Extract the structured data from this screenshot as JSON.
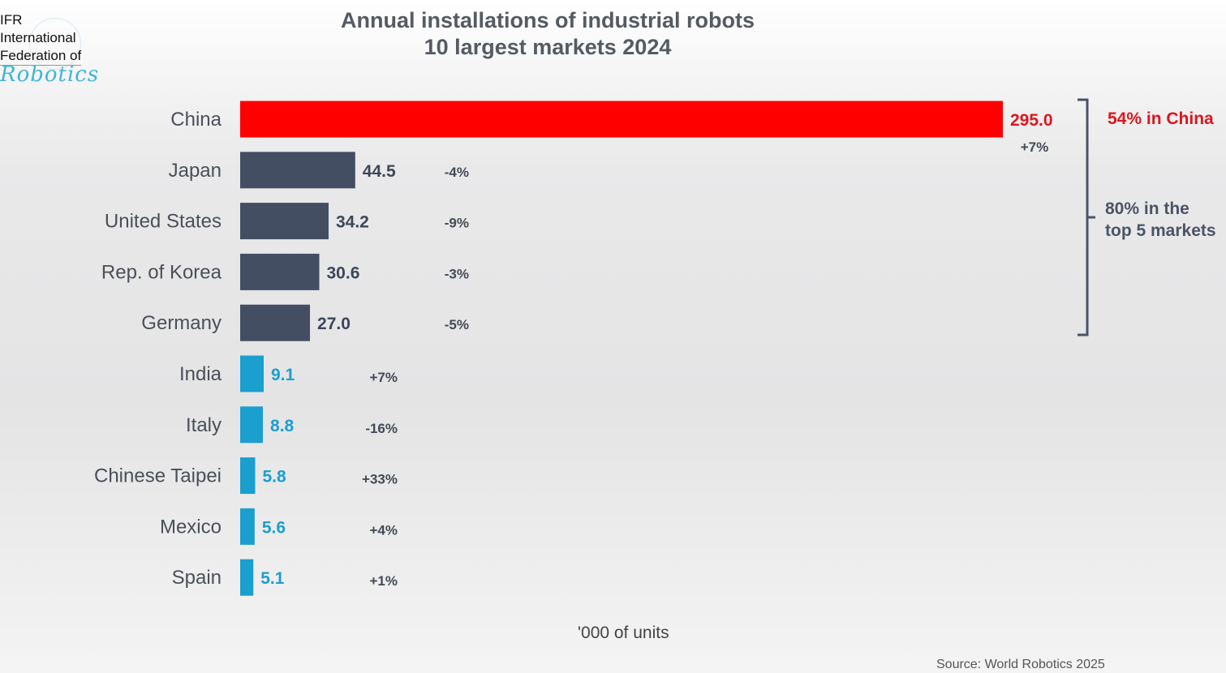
{
  "logo": {
    "line1": "IFR",
    "line2": "International",
    "line3": "Federation of",
    "line4": "Robotics"
  },
  "chart_data": {
    "type": "bar",
    "orientation": "horizontal",
    "title": "Annual installations of industrial robots",
    "subtitle": "10 largest markets 2024",
    "xlabel": "'000 of units",
    "categories": [
      "China",
      "Japan",
      "United States",
      "Rep. of Korea",
      "Germany",
      "India",
      "Italy",
      "Chinese Taipei",
      "Mexico",
      "Spain"
    ],
    "values": [
      295.0,
      44.5,
      34.2,
      30.6,
      27.0,
      9.1,
      8.8,
      5.8,
      5.6,
      5.1
    ],
    "value_labels": [
      "295.0",
      "44.5",
      "34.2",
      "30.6",
      "27.0",
      "9.1",
      "8.8",
      "5.8",
      "5.6",
      "5.1"
    ],
    "change_labels": [
      "+7%",
      "-4%",
      "-9%",
      "-3%",
      "-5%",
      "+7%",
      "-16%",
      "+33%",
      "+4%",
      "+1%"
    ],
    "bar_colors": [
      "#ff0000",
      "#434e63",
      "#434e63",
      "#434e63",
      "#434e63",
      "#1a9fcf",
      "#1a9fcf",
      "#1a9fcf",
      "#1a9fcf",
      "#1a9fcf"
    ],
    "label_colors": [
      "#e0141e",
      "#3d4659",
      "#3d4659",
      "#3d4659",
      "#3d4659",
      "#1a9fcf",
      "#1a9fcf",
      "#1a9fcf",
      "#1a9fcf",
      "#1a9fcf"
    ],
    "xlim": [
      0,
      295
    ],
    "grid": false,
    "annotations": {
      "china_share": "54% in China",
      "top5_line1": "80% in the",
      "top5_line2": "top 5 markets"
    },
    "source": "Source: World Robotics 2025"
  }
}
